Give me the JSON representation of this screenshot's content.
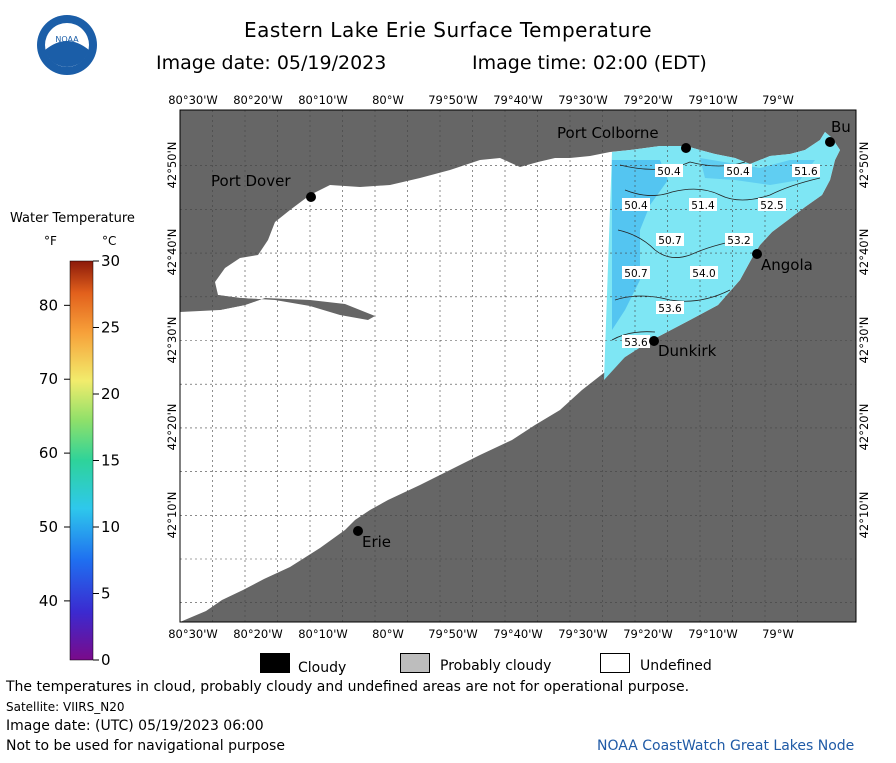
{
  "title": "Eastern Lake Erie Surface Temperature",
  "image_date_label": "Image date: 05/19/2023",
  "image_time_label": "Image time: 02:00 (EDT)",
  "logo_text": "NOAA",
  "colorbar": {
    "title": "Water Temperature",
    "unit_f": "°F",
    "unit_c": "°C",
    "f_ticks": [
      "40",
      "50",
      "60",
      "70",
      "80"
    ],
    "c_ticks": [
      "0",
      "5",
      "10",
      "15",
      "20",
      "25",
      "30"
    ],
    "f_min": 32,
    "f_max": 86,
    "c_min": 0,
    "c_max": 30
  },
  "map": {
    "lon_labels": [
      "80°30'W",
      "80°20'W",
      "80°10'W",
      "80°W",
      "79°50'W",
      "79°40'W",
      "79°30'W",
      "79°20'W",
      "79°10'W",
      "79°W"
    ],
    "lat_labels": [
      "42°50'N",
      "42°40'N",
      "42°30'N",
      "42°20'N",
      "42°10'N"
    ],
    "cities": [
      {
        "name": "Port Colborne"
      },
      {
        "name": "Port Dover"
      },
      {
        "name": "Bu"
      },
      {
        "name": "Angola"
      },
      {
        "name": "Dunkirk"
      },
      {
        "name": "Erie"
      }
    ],
    "temp_labels": [
      "50.4",
      "50.4",
      "51.6",
      "50.4",
      "51.4",
      "52.5",
      "50.7",
      "53.2",
      "50.7",
      "54.0",
      "53.6",
      "53.6"
    ],
    "colors": {
      "land": "#666666",
      "undefined": "#ffffff",
      "water_light": "#7ee6f4",
      "water_dark": "#47b9f0"
    }
  },
  "legend": {
    "cloudy": "Cloudy",
    "probably_cloudy": "Probably cloudy",
    "undefined": "Undefined"
  },
  "footer": {
    "disclaimer": "The temperatures in cloud, probably cloudy and undefined areas are not for operational purpose.",
    "satellite": "Satellite: VIIRS_N20",
    "utc_date": "Image date: (UTC) 05/19/2023  06:00",
    "nav_warning": "Not to be used for navigational purpose",
    "source": "NOAA CoastWatch Great Lakes Node"
  }
}
